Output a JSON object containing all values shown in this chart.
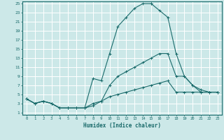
{
  "title": "",
  "xlabel": "Humidex (Indice chaleur)",
  "xlim": [
    -0.5,
    23.5
  ],
  "ylim": [
    0.5,
    25.5
  ],
  "xticks": [
    0,
    1,
    2,
    3,
    4,
    5,
    6,
    7,
    8,
    9,
    10,
    11,
    12,
    13,
    14,
    15,
    16,
    17,
    18,
    19,
    20,
    21,
    22,
    23
  ],
  "yticks": [
    1,
    3,
    5,
    7,
    9,
    11,
    13,
    15,
    17,
    19,
    21,
    23,
    25
  ],
  "bg_color": "#cce8e8",
  "line_color": "#1a6b6b",
  "grid_color": "#ffffff",
  "line1_x": [
    0,
    1,
    2,
    3,
    4,
    5,
    6,
    7,
    8,
    9,
    10,
    11,
    12,
    13,
    14,
    15,
    15,
    16,
    17,
    18,
    19,
    20,
    21,
    22,
    23
  ],
  "line1_y": [
    4,
    3,
    3.5,
    3,
    2,
    2,
    2,
    2,
    8.5,
    8,
    14,
    20,
    22,
    24,
    25,
    25,
    25,
    23.5,
    22,
    14,
    9,
    7,
    6,
    5.5,
    5.5
  ],
  "line2_x": [
    0,
    1,
    2,
    3,
    4,
    5,
    6,
    7,
    8,
    9,
    10,
    11,
    12,
    13,
    14,
    15,
    16,
    17,
    18,
    19,
    20,
    21,
    22,
    23
  ],
  "line2_y": [
    4,
    3,
    3.5,
    3,
    2,
    2,
    2,
    2,
    3,
    3.5,
    7,
    9,
    10,
    11,
    12,
    13,
    14,
    14,
    9,
    9,
    7,
    5.5,
    5.5,
    5.5
  ],
  "line3_x": [
    0,
    1,
    2,
    3,
    4,
    5,
    6,
    7,
    8,
    9,
    10,
    11,
    12,
    13,
    14,
    15,
    16,
    17,
    18,
    19,
    20,
    21,
    22,
    23
  ],
  "line3_y": [
    4,
    3,
    3.5,
    3,
    2,
    2,
    2,
    2,
    2.5,
    3.5,
    4.5,
    5,
    5.5,
    6,
    6.5,
    7,
    7.5,
    8,
    5.5,
    5.5,
    5.5,
    5.5,
    5.5,
    5.5
  ]
}
